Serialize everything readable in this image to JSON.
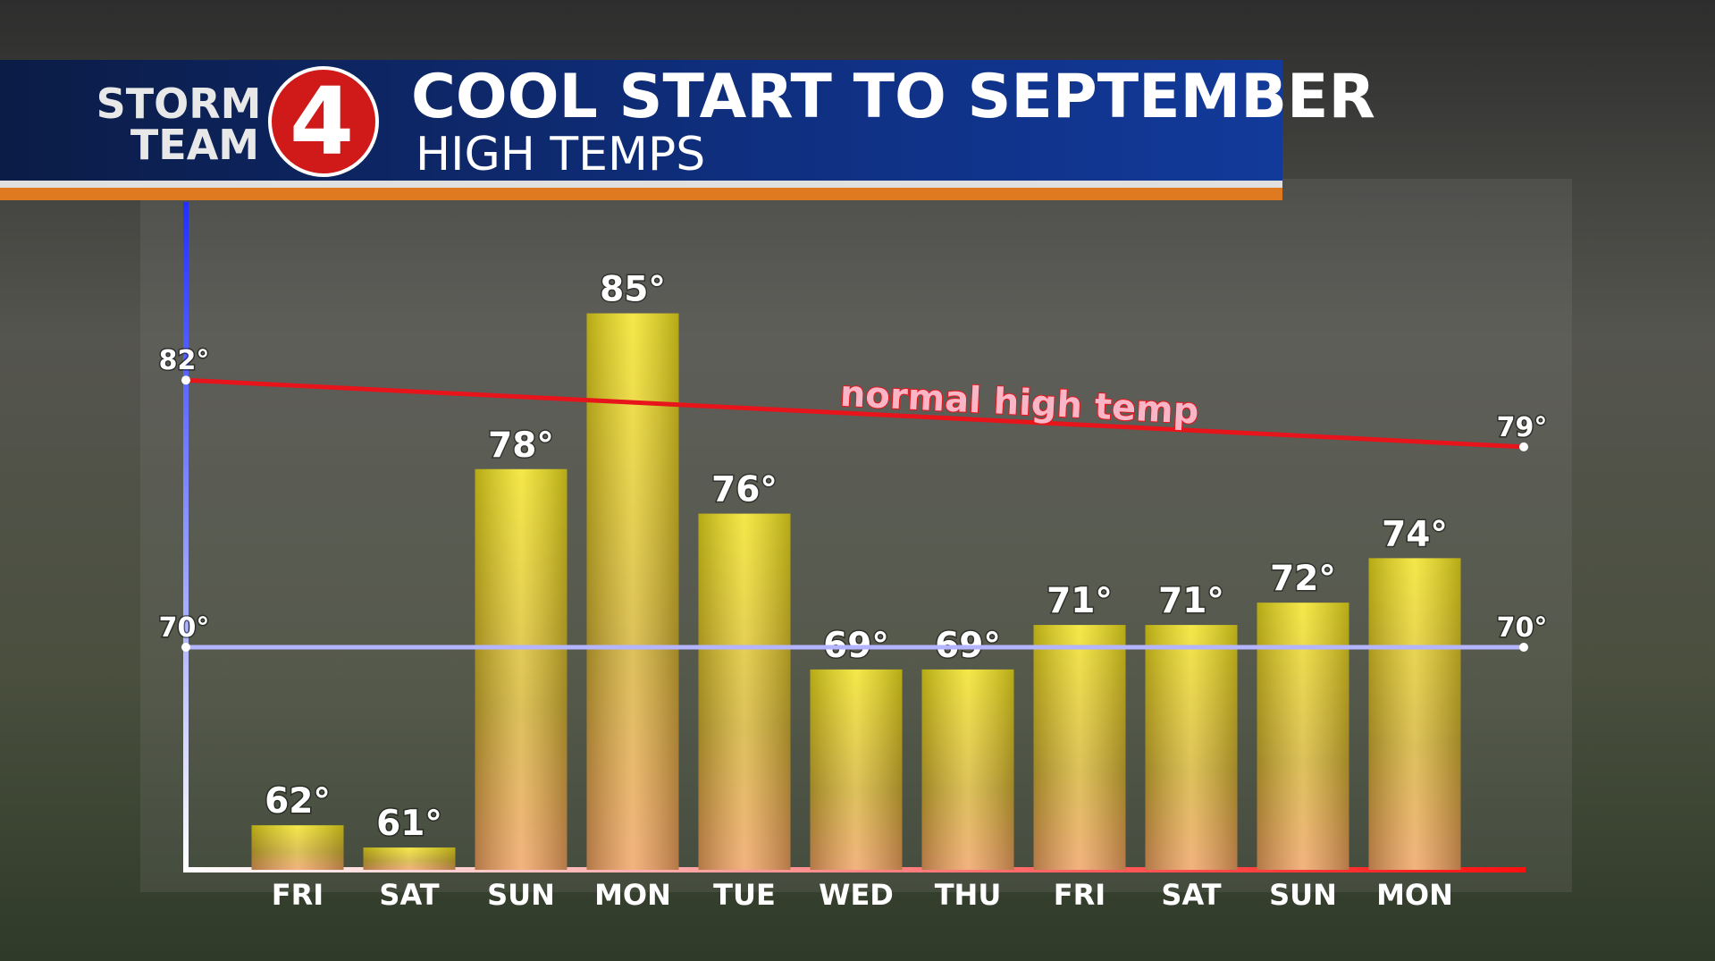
{
  "branding": {
    "line1": "STORM",
    "line2": "TEAM",
    "number": "4"
  },
  "chart_data": {
    "type": "bar",
    "title": "COOL START TO SEPTEMBER",
    "subtitle": "HIGH TEMPS",
    "categories": [
      "FRI",
      "SAT",
      "SUN",
      "MON",
      "TUE",
      "WED",
      "THU",
      "FRI",
      "SAT",
      "SUN",
      "MON"
    ],
    "values": [
      62,
      61,
      78,
      85,
      76,
      69,
      69,
      71,
      71,
      72,
      74
    ],
    "value_labels": [
      "62°",
      "61°",
      "78°",
      "85°",
      "76°",
      "69°",
      "69°",
      "71°",
      "71°",
      "72°",
      "74°"
    ],
    "color": "#f2e21c",
    "ylim": [
      60,
      90
    ],
    "normal_high": {
      "label": "normal high temp",
      "values": [
        82,
        79
      ],
      "value_labels": [
        "82°",
        "79°"
      ],
      "color": "#e8141c"
    },
    "reference_line": {
      "values": [
        70,
        70
      ],
      "value_labels": [
        "70°",
        "70°"
      ],
      "color": "#b4b4ff"
    }
  }
}
